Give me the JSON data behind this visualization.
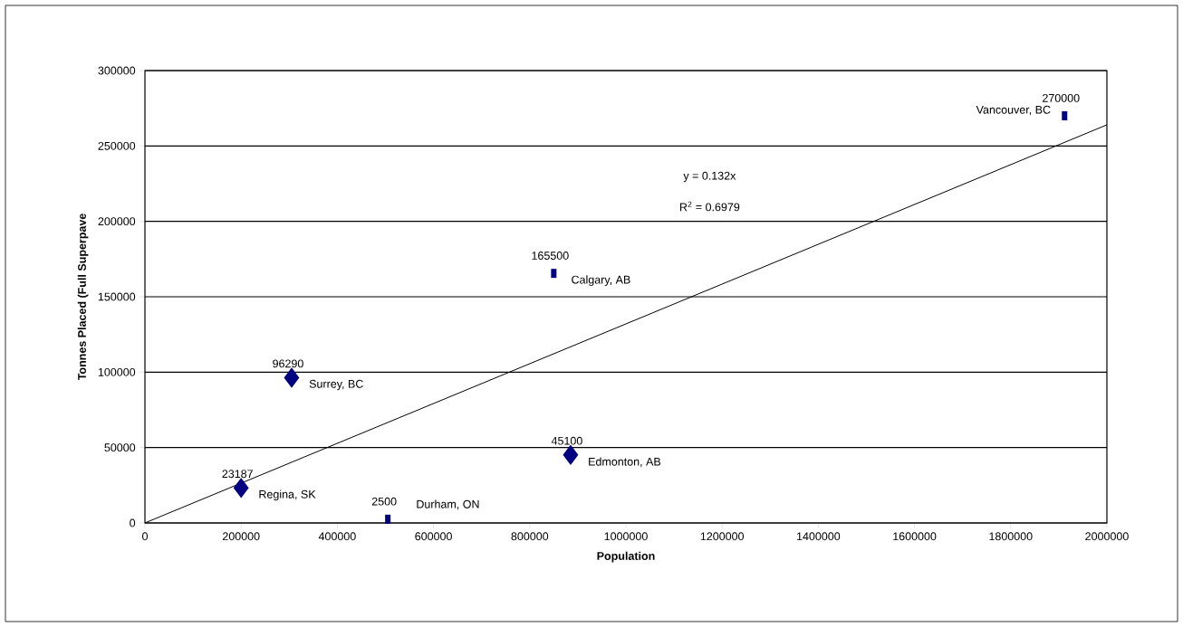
{
  "chart_data": {
    "type": "scatter",
    "xlabel": "Population",
    "ylabel": "Tonnes Placed (Full Superpave",
    "xlim": [
      0,
      2000000
    ],
    "ylim": [
      0,
      300000
    ],
    "xticks": [
      0,
      200000,
      400000,
      600000,
      800000,
      1000000,
      1200000,
      1400000,
      1600000,
      1800000,
      2000000
    ],
    "yticks": [
      0,
      50000,
      100000,
      150000,
      200000,
      250000,
      300000
    ],
    "grid": "y",
    "series": [
      {
        "marker": "diamond",
        "color": "#000080",
        "x": [
          200000,
          305000,
          885000
        ],
        "values": [
          23187,
          96290,
          45100
        ],
        "value_labels": [
          "23187",
          "96290",
          "45100"
        ]
      },
      {
        "marker": "square",
        "color": "#000080",
        "x": [
          505000,
          850000,
          1912000
        ],
        "values": [
          2500,
          165500,
          270000
        ],
        "value_labels": [
          "2500",
          "165500",
          "270000"
        ]
      },
      {
        "type": "line",
        "marker": "none",
        "color": "#000000",
        "x": [
          0,
          2000000
        ],
        "values": [
          0,
          264000
        ]
      }
    ],
    "annotations": [
      {
        "text": "Regina, SK",
        "x": 200000,
        "y": 23187
      },
      {
        "text": "Surrey, BC",
        "x": 305000,
        "y": 96290
      },
      {
        "text": "Edmonton, AB",
        "x": 885000,
        "y": 45100
      },
      {
        "text": "Durham, ON",
        "x": 505000,
        "y": 2500
      },
      {
        "text": "Calgary, AB",
        "x": 850000,
        "y": 165500
      },
      {
        "text": "Vancouver, BC",
        "x": 1912000,
        "y": 270000
      },
      "y = 0.132x",
      "R$^{2}$ = 0.6979"
    ]
  }
}
